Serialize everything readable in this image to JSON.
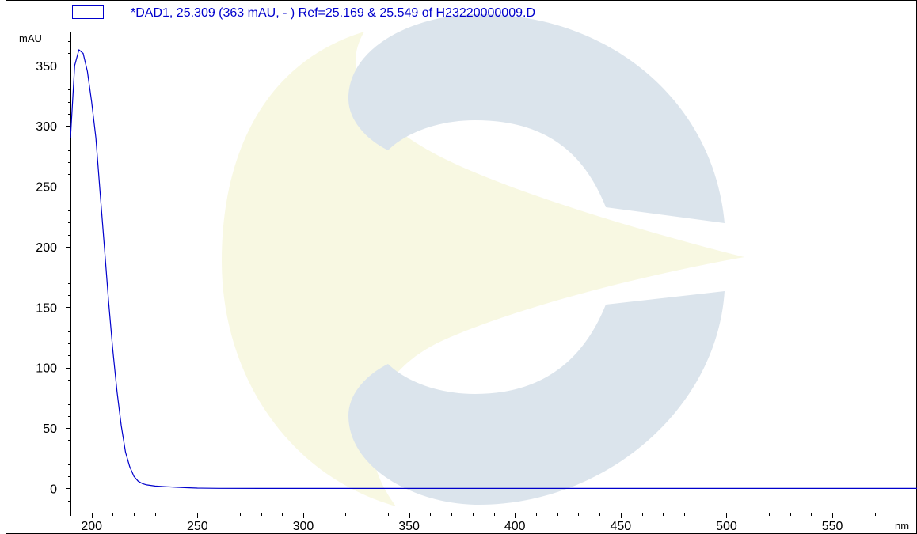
{
  "colors": {
    "series": "#0000cc",
    "axis": "#000000",
    "frame": "#000000",
    "watermark_blue": "#dbe4ec",
    "watermark_yellow": "#f8f8e2"
  },
  "watermark": {
    "icon": "company-logo-watermark"
  },
  "chart_data": {
    "type": "line",
    "title": "",
    "xlabel": "",
    "ylabel": "",
    "x_unit": "nm",
    "y_unit": "mAU",
    "xlim": [
      190,
      590
    ],
    "ylim": [
      -20,
      378
    ],
    "x_ticks": [
      200,
      250,
      300,
      350,
      400,
      450,
      500,
      550
    ],
    "x_tick_labels": [
      "200",
      "250",
      "300",
      "350",
      "400",
      "450",
      "500",
      "550"
    ],
    "y_ticks": [
      0,
      50,
      100,
      150,
      200,
      250,
      300,
      350
    ],
    "y_tick_labels": [
      "0",
      "50",
      "100",
      "150",
      "200",
      "250",
      "300",
      "350"
    ],
    "grid": false,
    "legend": {
      "placement": "top-left"
    },
    "series": [
      {
        "name": "*DAD1, 25.309 (363 mAU, - ) Ref=25.169 & 25.549 of H23220000009.D",
        "x": [
          190,
          192,
          194,
          196,
          198,
          200,
          202,
          204,
          206,
          208,
          210,
          212,
          214,
          216,
          218,
          220,
          222,
          224,
          226,
          230,
          235,
          240,
          245,
          250,
          260,
          280,
          300,
          350,
          400,
          450,
          500,
          550,
          590
        ],
        "y": [
          290,
          350,
          363,
          360,
          345,
          320,
          290,
          245,
          200,
          155,
          115,
          80,
          52,
          30,
          18,
          10,
          6,
          4,
          3,
          2,
          1.5,
          1,
          0.6,
          0.3,
          0.1,
          0,
          0,
          0,
          0,
          0,
          0,
          0,
          0
        ]
      }
    ]
  }
}
